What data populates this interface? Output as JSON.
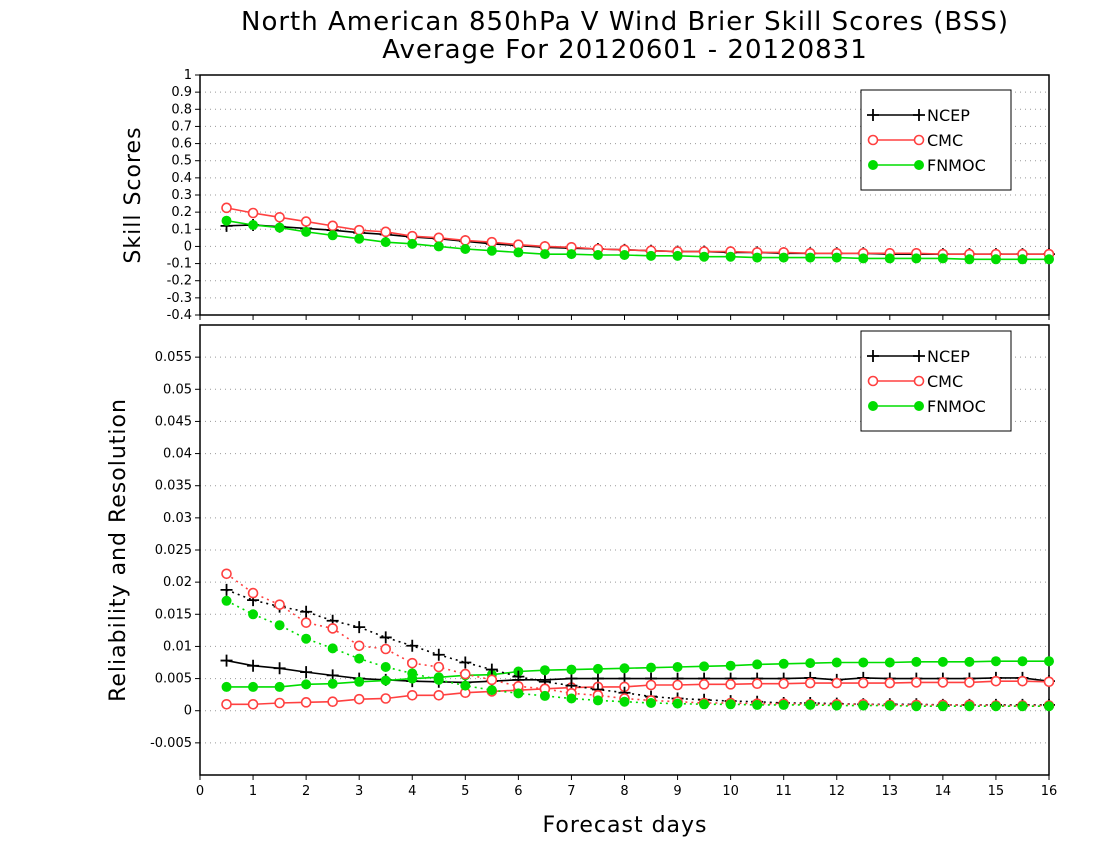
{
  "figure": {
    "title_line1": "North American 850hPa V Wind Brier Skill Scores (BSS)",
    "title_line2": "Average For 20120601 - 20120831",
    "xlabel": "Forecast days",
    "colors": {
      "NCEP": "#000000",
      "CMC": "#ff4040",
      "FNMOC": "#00dd00"
    }
  },
  "chart_data": [
    {
      "type": "line",
      "title": "",
      "ylabel": "Skill Scores",
      "xlabel": "Forecast days",
      "xlim": [
        0,
        16
      ],
      "ylim": [
        -0.4,
        1
      ],
      "grid": true,
      "legend_position": "top-right",
      "x_ticks": [
        0,
        1,
        2,
        3,
        4,
        5,
        6,
        7,
        8,
        9,
        10,
        11,
        12,
        13,
        14,
        15,
        16
      ],
      "y_ticks": [
        -0.4,
        -0.3,
        -0.2,
        -0.1,
        0,
        0.1,
        0.2,
        0.3,
        0.4,
        0.5,
        0.6,
        0.7,
        0.8,
        0.9,
        1
      ],
      "x": [
        0.5,
        1,
        1.5,
        2,
        2.5,
        3,
        3.5,
        4,
        4.5,
        5,
        5.5,
        6,
        6.5,
        7,
        7.5,
        8,
        8.5,
        9,
        9.5,
        10,
        10.5,
        11,
        11.5,
        12,
        12.5,
        13,
        13.5,
        14,
        14.5,
        15,
        15.5,
        16
      ],
      "series": [
        {
          "name": "NCEP",
          "marker": "plus",
          "line": "solid",
          "values": [
            0.12,
            0.125,
            0.115,
            0.105,
            0.095,
            0.08,
            0.07,
            0.055,
            0.045,
            0.03,
            0.015,
            0.005,
            -0.005,
            -0.01,
            -0.015,
            -0.02,
            -0.025,
            -0.03,
            -0.03,
            -0.035,
            -0.035,
            -0.04,
            -0.04,
            -0.04,
            -0.04,
            -0.045,
            -0.045,
            -0.045,
            -0.045,
            -0.045,
            -0.045,
            -0.045
          ]
        },
        {
          "name": "CMC",
          "marker": "open-circle",
          "line": "solid",
          "values": [
            0.225,
            0.195,
            0.17,
            0.145,
            0.12,
            0.095,
            0.085,
            0.06,
            0.05,
            0.035,
            0.025,
            0.01,
            0.0,
            -0.005,
            -0.015,
            -0.02,
            -0.025,
            -0.03,
            -0.03,
            -0.03,
            -0.035,
            -0.035,
            -0.04,
            -0.04,
            -0.04,
            -0.04,
            -0.04,
            -0.045,
            -0.045,
            -0.045,
            -0.045,
            -0.045
          ]
        },
        {
          "name": "FNMOC",
          "marker": "filled-circle",
          "line": "solid",
          "values": [
            0.15,
            0.125,
            0.11,
            0.085,
            0.065,
            0.045,
            0.025,
            0.015,
            0.0,
            -0.015,
            -0.025,
            -0.035,
            -0.045,
            -0.045,
            -0.05,
            -0.05,
            -0.055,
            -0.055,
            -0.06,
            -0.06,
            -0.065,
            -0.065,
            -0.065,
            -0.065,
            -0.07,
            -0.07,
            -0.07,
            -0.07,
            -0.075,
            -0.075,
            -0.075,
            -0.075
          ]
        }
      ]
    },
    {
      "type": "line",
      "title": "",
      "ylabel": "Reliability and Resolution",
      "xlabel": "Forecast days",
      "xlim": [
        0,
        16
      ],
      "ylim": [
        -0.01,
        0.06
      ],
      "grid": true,
      "legend_position": "top-right",
      "x_ticks": [
        0,
        1,
        2,
        3,
        4,
        5,
        6,
        7,
        8,
        9,
        10,
        11,
        12,
        13,
        14,
        15,
        16
      ],
      "y_ticks": [
        -0.005,
        0,
        0.005,
        0.01,
        0.015,
        0.02,
        0.025,
        0.03,
        0.035,
        0.04,
        0.045,
        0.05,
        0.055
      ],
      "x": [
        0.5,
        1,
        1.5,
        2,
        2.5,
        3,
        3.5,
        4,
        4.5,
        5,
        5.5,
        6,
        6.5,
        7,
        7.5,
        8,
        8.5,
        9,
        9.5,
        10,
        10.5,
        11,
        11.5,
        12,
        12.5,
        13,
        13.5,
        14,
        14.5,
        15,
        15.5,
        16
      ],
      "series": [
        {
          "name": "NCEP",
          "marker": "plus",
          "line": "solid",
          "values": [
            0.0078,
            0.007,
            0.0066,
            0.006,
            0.0055,
            0.005,
            0.0048,
            0.0046,
            0.0045,
            0.0044,
            0.0046,
            0.0048,
            0.0048,
            0.005,
            0.005,
            0.005,
            0.005,
            0.005,
            0.005,
            0.005,
            0.005,
            0.005,
            0.0051,
            0.0048,
            0.0051,
            0.005,
            0.005,
            0.005,
            0.005,
            0.0051,
            0.0051,
            0.0046
          ]
        },
        {
          "name": "CMC",
          "marker": "open-circle",
          "line": "solid",
          "values": [
            0.001,
            0.001,
            0.0012,
            0.0013,
            0.0014,
            0.0018,
            0.0019,
            0.0024,
            0.0024,
            0.0028,
            0.003,
            0.0032,
            0.0034,
            0.0036,
            0.0037,
            0.0037,
            0.004,
            0.004,
            0.0041,
            0.0041,
            0.0042,
            0.0042,
            0.0043,
            0.0043,
            0.0043,
            0.0043,
            0.0044,
            0.0044,
            0.0044,
            0.0046,
            0.0046,
            0.0045
          ]
        },
        {
          "name": "FNMOC",
          "marker": "filled-circle",
          "line": "solid",
          "values": [
            0.0037,
            0.0037,
            0.0037,
            0.0041,
            0.0042,
            0.0045,
            0.0047,
            0.005,
            0.0052,
            0.0055,
            0.0056,
            0.0061,
            0.0063,
            0.0064,
            0.0065,
            0.0066,
            0.0067,
            0.0068,
            0.0069,
            0.007,
            0.0072,
            0.0073,
            0.0074,
            0.0075,
            0.0075,
            0.0075,
            0.0076,
            0.0076,
            0.0076,
            0.0077,
            0.0077,
            0.0077
          ]
        },
        {
          "name": "NCEP",
          "marker": "plus",
          "line": "dotted",
          "values": [
            0.0188,
            0.0172,
            0.0162,
            0.0154,
            0.014,
            0.013,
            0.0114,
            0.0101,
            0.0087,
            0.0075,
            0.0064,
            0.0053,
            0.0045,
            0.0039,
            0.0033,
            0.0028,
            0.0022,
            0.0019,
            0.0017,
            0.0015,
            0.0014,
            0.0012,
            0.0012,
            0.0011,
            0.001,
            0.001,
            0.001,
            0.0009,
            0.0009,
            0.0009,
            0.0009,
            0.0009
          ]
        },
        {
          "name": "CMC",
          "marker": "open-circle",
          "line": "dotted",
          "values": [
            0.0213,
            0.0183,
            0.0165,
            0.0137,
            0.0128,
            0.0101,
            0.0096,
            0.0074,
            0.0068,
            0.0057,
            0.0048,
            0.0038,
            0.0034,
            0.0027,
            0.0024,
            0.0019,
            0.0016,
            0.0014,
            0.0012,
            0.0012,
            0.0011,
            0.0011,
            0.001,
            0.001,
            0.001,
            0.0009,
            0.0009,
            0.0009,
            0.0009,
            0.0008,
            0.0008,
            0.0008
          ]
        },
        {
          "name": "FNMOC",
          "marker": "filled-circle",
          "line": "dotted",
          "values": [
            0.0171,
            0.015,
            0.0133,
            0.0112,
            0.0097,
            0.0081,
            0.0068,
            0.0058,
            0.0048,
            0.0039,
            0.0032,
            0.0027,
            0.0023,
            0.0019,
            0.0016,
            0.0014,
            0.0012,
            0.0011,
            0.001,
            0.001,
            0.0009,
            0.0009,
            0.0009,
            0.0008,
            0.0008,
            0.0008,
            0.0007,
            0.0007,
            0.0007,
            0.0007,
            0.0007,
            0.0007
          ]
        }
      ]
    }
  ],
  "legends": [
    {
      "items": [
        "NCEP",
        "CMC",
        "FNMOC"
      ]
    },
    {
      "items": [
        "NCEP",
        "CMC",
        "FNMOC"
      ]
    }
  ]
}
